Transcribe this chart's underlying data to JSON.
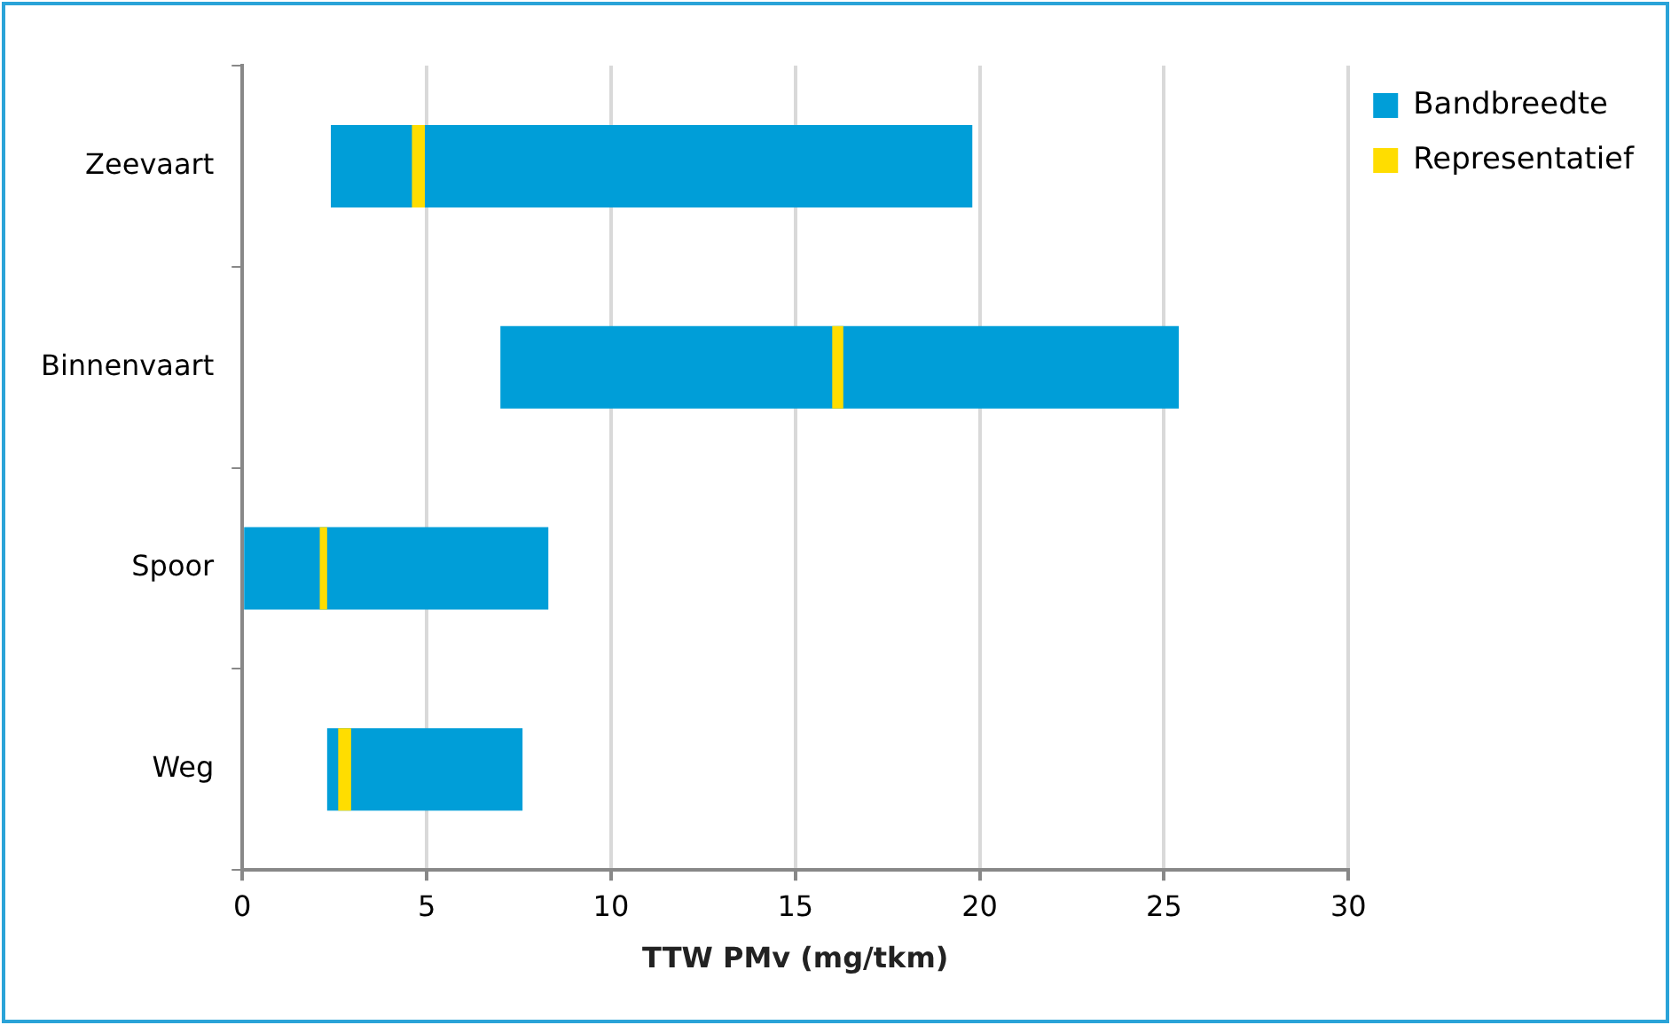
{
  "chart_data": {
    "type": "bar",
    "orientation": "horizontal",
    "xlabel": "TTW PMv (mg/tkm)",
    "categories": [
      "Zeevaart",
      "Binnenvaart",
      "Spoor",
      "Weg"
    ],
    "series": [
      {
        "name": "Bandbreedte",
        "color": "#009ed8",
        "base": [
          2.4,
          7.0,
          0,
          2.3
        ],
        "values": [
          17.4,
          18.4,
          8.3,
          5.3
        ]
      },
      {
        "name": "Representatief",
        "color": "#ffdd00",
        "base": [
          4.6,
          16.0,
          2.1,
          2.6
        ],
        "values": [
          0.35,
          0.3,
          0.2,
          0.35
        ]
      }
    ],
    "xlim": [
      0,
      30
    ],
    "xticks": [
      0,
      5,
      10,
      15,
      20,
      25,
      30
    ],
    "grid": "x",
    "legend": "top right"
  }
}
